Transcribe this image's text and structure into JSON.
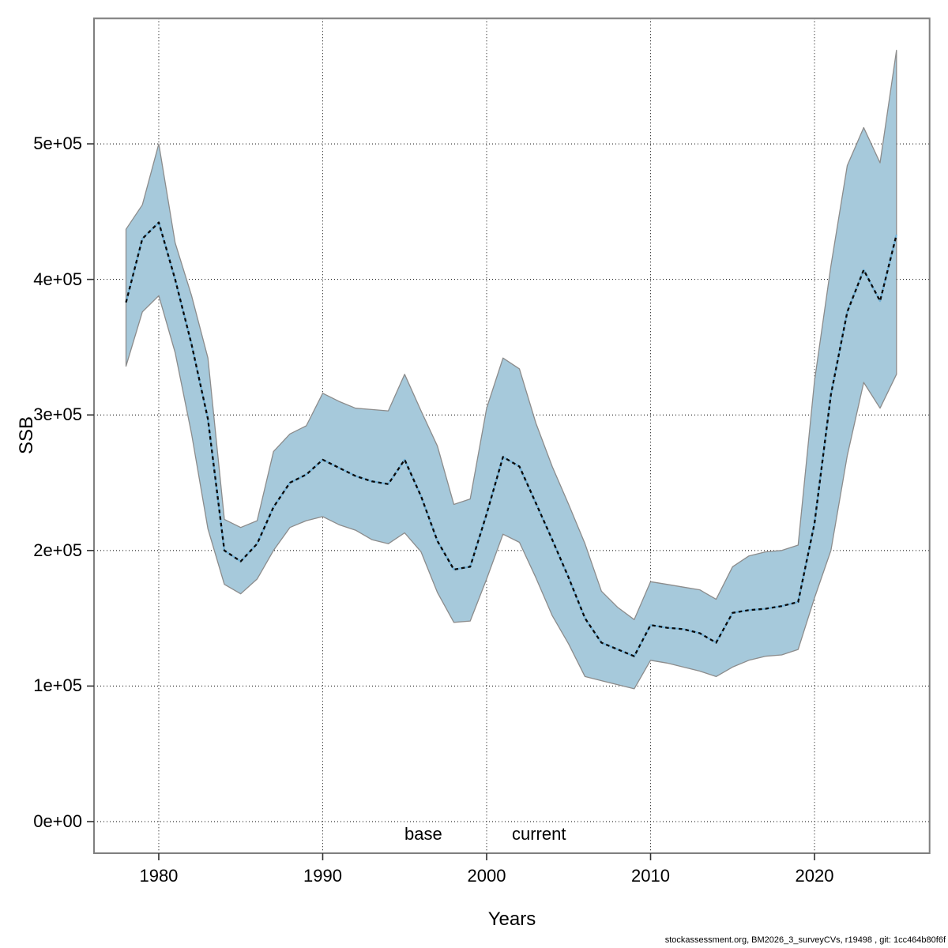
{
  "figure": {
    "ylabel": "SSB",
    "xlabel": "Years",
    "footer": "stockassessment.org, BM2026_3_surveyCVs, r19498 , git: 1cc464b80f6f"
  },
  "legend": {
    "base_label": "base",
    "current_label": "current",
    "base_color": "#000000",
    "current_color": "#74b3d8"
  },
  "chart_data": {
    "type": "line",
    "title": "",
    "xlabel": "Years",
    "ylabel": "SSB",
    "grid": true,
    "legend_position": "bottom-center",
    "x": [
      1978,
      1979,
      1980,
      1981,
      1982,
      1983,
      1984,
      1985,
      1986,
      1987,
      1988,
      1989,
      1990,
      1991,
      1992,
      1993,
      1994,
      1995,
      1996,
      1997,
      1998,
      1999,
      2000,
      2001,
      2002,
      2003,
      2004,
      2005,
      2006,
      2007,
      2008,
      2009,
      2010,
      2011,
      2012,
      2013,
      2014,
      2015,
      2016,
      2017,
      2018,
      2019,
      2020,
      2021,
      2022,
      2023,
      2024,
      2025
    ],
    "series": [
      {
        "name": "current",
        "line_style": "dashed",
        "underlay_color": "#74b3d8",
        "dash_color": "#0a0a0a",
        "values": [
          383000,
          430000,
          442000,
          400000,
          352000,
          297000,
          200000,
          192000,
          205000,
          232000,
          250000,
          256000,
          267000,
          261000,
          255000,
          251000,
          249000,
          267000,
          240000,
          207000,
          186000,
          188000,
          227000,
          269000,
          262000,
          235000,
          208000,
          180000,
          150000,
          132000,
          127000,
          122000,
          145000,
          143000,
          142000,
          139000,
          132000,
          154000,
          156000,
          157000,
          159000,
          162000,
          220000,
          315000,
          376000,
          407000,
          384000,
          433000
        ]
      }
    ],
    "confidence_band": {
      "for_series": "current",
      "fill": "#a6c9db",
      "edge": "#8c8c8c",
      "lower": [
        336000,
        376000,
        388000,
        346000,
        286000,
        216000,
        175000,
        168000,
        179000,
        200000,
        217000,
        222000,
        225000,
        219000,
        215000,
        208000,
        205000,
        213000,
        199000,
        169000,
        147000,
        148000,
        179000,
        212000,
        206000,
        180000,
        152000,
        131000,
        107000,
        104000,
        101000,
        98000,
        119000,
        117000,
        114000,
        111000,
        107000,
        114000,
        119000,
        122000,
        123000,
        127000,
        165000,
        200000,
        270000,
        324000,
        305000,
        330000
      ],
      "upper": [
        437000,
        455000,
        500000,
        427000,
        388000,
        342000,
        223000,
        217000,
        222000,
        273000,
        286000,
        292000,
        316000,
        310000,
        305000,
        304000,
        303000,
        330000,
        303000,
        277000,
        234000,
        238000,
        305000,
        342000,
        334000,
        294000,
        262000,
        234000,
        205000,
        170000,
        158000,
        149000,
        177000,
        175000,
        173000,
        171000,
        164000,
        188000,
        196000,
        199000,
        200000,
        204000,
        325000,
        410000,
        484000,
        512000,
        486000,
        569000
      ]
    },
    "x_ticks": [
      {
        "value": 1980,
        "label": "1980"
      },
      {
        "value": 1990,
        "label": "1990"
      },
      {
        "value": 2000,
        "label": "2000"
      },
      {
        "value": 2010,
        "label": "2010"
      },
      {
        "value": 2020,
        "label": "2020"
      }
    ],
    "y_ticks": [
      {
        "value": 0,
        "label": "0e+00"
      },
      {
        "value": 100000,
        "label": "1e+05"
      },
      {
        "value": 200000,
        "label": "2e+05"
      },
      {
        "value": 300000,
        "label": "3e+05"
      },
      {
        "value": 400000,
        "label": "4e+05"
      },
      {
        "value": 500000,
        "label": "5e+05"
      }
    ],
    "xlim": [
      1976.05,
      2027.02
    ],
    "ylim": [
      -23310,
      592540
    ],
    "colors": {
      "border": "#7f7f7f",
      "gridline": "#000000",
      "tick": "#303030"
    }
  }
}
